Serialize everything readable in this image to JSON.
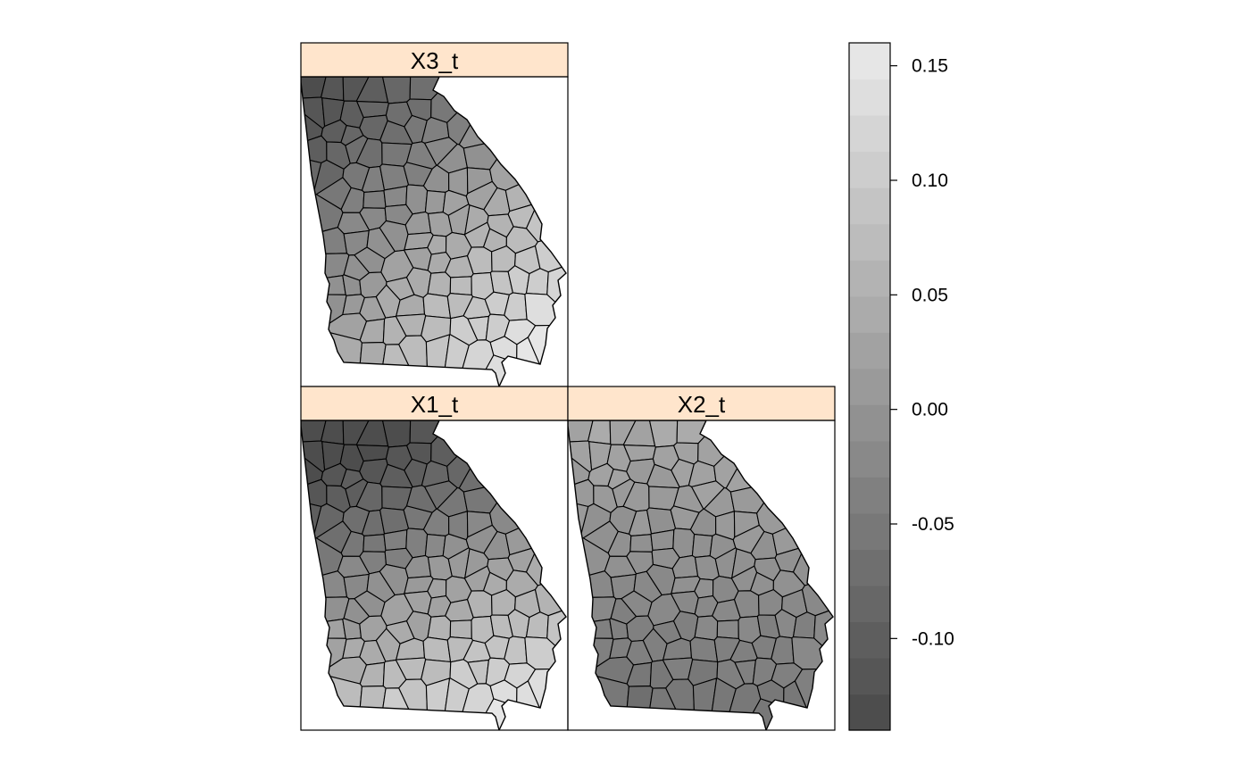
{
  "panels": [
    {
      "id": "x3",
      "label": "X3_t",
      "north_level": -0.07,
      "south_level": 0.1,
      "west_level": -0.08,
      "east_level": 0.08
    },
    {
      "id": "x1",
      "label": "X1_t",
      "north_level": -0.13,
      "south_level": 0.12,
      "west_level": -0.07,
      "east_level": 0.03
    },
    {
      "id": "x2",
      "label": "X2_t",
      "north_level": 0.04,
      "south_level": -0.06,
      "west_level": -0.03,
      "east_level": -0.02
    }
  ],
  "colorkey": {
    "range": [
      -0.14,
      0.16
    ],
    "bins": 19,
    "color_low": "#4d4d4d",
    "color_high": "#e6e6e6",
    "ticks": [
      {
        "value": 0.15,
        "label": "0.15"
      },
      {
        "value": 0.1,
        "label": "0.10"
      },
      {
        "value": 0.05,
        "label": "0.05"
      },
      {
        "value": 0.0,
        "label": "0.00"
      },
      {
        "value": -0.05,
        "label": "-0.05"
      },
      {
        "value": -0.1,
        "label": "-0.10"
      }
    ]
  },
  "colors": {
    "strip_background": "#ffe5cc",
    "border": "#000000"
  }
}
